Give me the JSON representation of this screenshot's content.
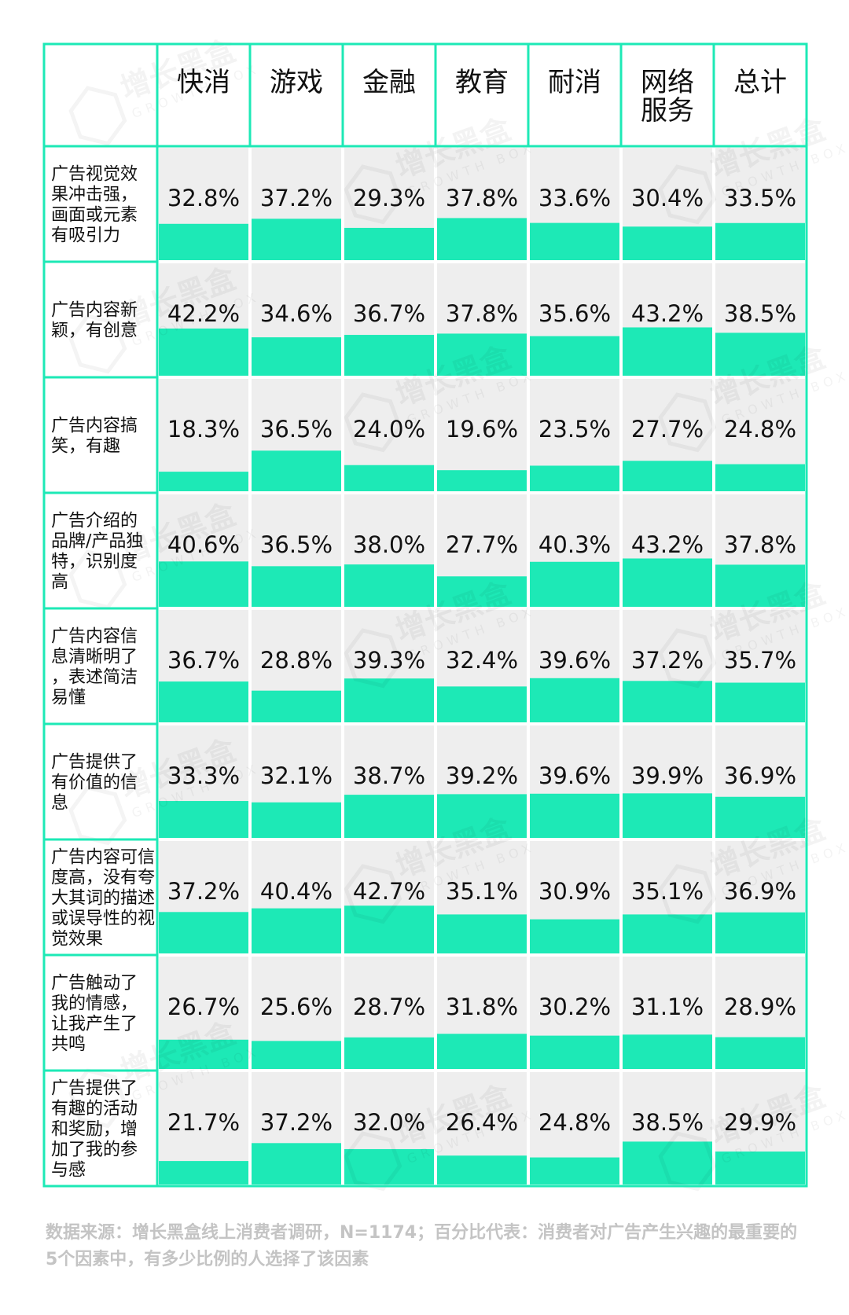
{
  "chart_data": {
    "type": "table",
    "columns": [
      "快消",
      "游戏",
      "金融",
      "教育",
      "耐消",
      "网络服务",
      "总计"
    ],
    "column_lines": [
      [
        "快消"
      ],
      [
        "游戏"
      ],
      [
        "金融"
      ],
      [
        "教育"
      ],
      [
        "耐消"
      ],
      [
        "网络",
        "服务"
      ],
      [
        "总计"
      ]
    ],
    "rows": [
      {
        "label": "广告视觉效果冲击强，画面或元素有吸引力",
        "label_lines": [
          "广告视觉效",
          "果冲击强，",
          "画面或元素",
          "有吸引力"
        ],
        "values": [
          32.8,
          37.2,
          29.3,
          37.8,
          33.6,
          30.4,
          33.5
        ]
      },
      {
        "label": "广告内容新颖，有创意",
        "label_lines": [
          "广告内容新",
          "颖，有创意"
        ],
        "values": [
          42.2,
          34.6,
          36.7,
          37.8,
          35.6,
          43.2,
          38.5
        ]
      },
      {
        "label": "广告内容搞笑，有趣",
        "label_lines": [
          "广告内容搞",
          "笑，有趣"
        ],
        "values": [
          18.3,
          36.5,
          24.0,
          19.6,
          23.5,
          27.7,
          24.8
        ]
      },
      {
        "label": "广告介绍的品牌/产品独特，识别度高",
        "label_lines": [
          "广告介绍的",
          "品牌/产品独",
          "特，识别度",
          "高"
        ],
        "values": [
          40.6,
          36.5,
          38.0,
          27.7,
          40.3,
          43.2,
          37.8
        ]
      },
      {
        "label": "广告内容信息清晰明了，表述简洁易懂",
        "label_lines": [
          "广告内容信",
          "息清晰明了",
          "，表述简洁",
          "易懂"
        ],
        "values": [
          36.7,
          28.8,
          39.3,
          32.4,
          39.6,
          37.2,
          35.7
        ]
      },
      {
        "label": "广告提供了有价值的信息",
        "label_lines": [
          "广告提供了",
          "有价值的信",
          "息"
        ],
        "values": [
          33.3,
          32.1,
          38.7,
          39.2,
          39.6,
          39.9,
          36.9
        ]
      },
      {
        "label": "广告内容可信度高，没有夸大其词的描述或误导性的视觉效果",
        "label_lines": [
          "广告内容可信",
          "度高，没有夸",
          "大其词的描述",
          "或误导性的视",
          "觉效果"
        ],
        "values": [
          37.2,
          40.4,
          42.7,
          35.1,
          30.9,
          35.1,
          36.9
        ]
      },
      {
        "label": "广告触动了我的情感，让我产生了共鸣",
        "label_lines": [
          "广告触动了",
          "我的情感，",
          "让我产生了",
          "共鸣"
        ],
        "values": [
          26.7,
          25.6,
          28.7,
          31.8,
          30.2,
          31.1,
          28.9
        ]
      },
      {
        "label": "广告提供了有趣的活动和奖励，增加了我的参与感",
        "label_lines": [
          "广告提供了",
          "有趣的活动",
          "和奖励，增",
          "加了我的参",
          "与感"
        ],
        "values": [
          21.7,
          37.2,
          32.0,
          26.4,
          24.8,
          38.5,
          29.9
        ]
      }
    ],
    "value_unit": "%",
    "colors": {
      "bar": "#1de9b6",
      "border": "#1de9b6",
      "cell_bg": "#eeeeee"
    }
  },
  "watermark": {
    "text": "增长黑盒",
    "sub": "GROWTH BOX"
  },
  "footnote": "数据来源：增长黑盒线上消费者调研，N=1174；百分比代表：消费者对广告产生兴趣的最重要的5个因素中，有多少比例的人选择了该因素"
}
